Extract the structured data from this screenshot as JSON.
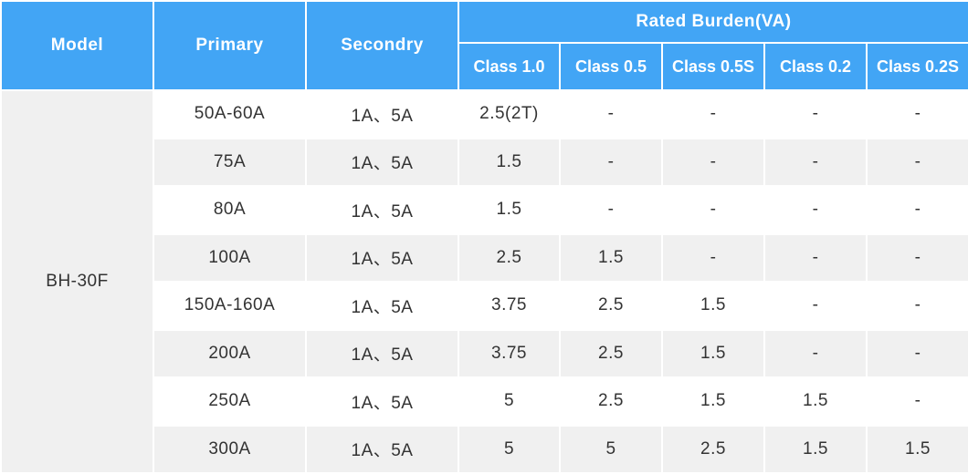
{
  "header": {
    "model": "Model",
    "primary": "Primary",
    "secondary": "Secondry",
    "rated_burden": "Rated Burden(VA)",
    "classes": [
      "Class 1.0",
      "Class 0.5",
      "Class 0.5S",
      "Class 0.2",
      "Class 0.2S"
    ]
  },
  "model": "BH-30F",
  "rows": [
    {
      "primary": "50A-60A",
      "secondary": "1A、5A",
      "values": [
        "2.5(2T)",
        "-",
        "-",
        "-",
        "-"
      ]
    },
    {
      "primary": "75A",
      "secondary": "1A、5A",
      "values": [
        "1.5",
        "-",
        "-",
        "-",
        "-"
      ]
    },
    {
      "primary": "80A",
      "secondary": "1A、5A",
      "values": [
        "1.5",
        "-",
        "-",
        "-",
        "-"
      ]
    },
    {
      "primary": "100A",
      "secondary": "1A、5A",
      "values": [
        "2.5",
        "1.5",
        "-",
        "-",
        "-"
      ]
    },
    {
      "primary": "150A-160A",
      "secondary": "1A、5A",
      "values": [
        "3.75",
        "2.5",
        "1.5",
        "-",
        "-"
      ]
    },
    {
      "primary": "200A",
      "secondary": "1A、5A",
      "values": [
        "3.75",
        "2.5",
        "1.5",
        "-",
        "-"
      ]
    },
    {
      "primary": "250A",
      "secondary": "1A、5A",
      "values": [
        "5",
        "2.5",
        "1.5",
        "1.5",
        "-"
      ]
    },
    {
      "primary": "300A",
      "secondary": "1A、5A",
      "values": [
        "5",
        "5",
        "2.5",
        "1.5",
        "1.5"
      ]
    }
  ],
  "colors": {
    "header_bg": "#42a5f5",
    "header_text": "#ffffff",
    "row_alt_bg": "#f0f0f0",
    "cell_text": "#333333"
  }
}
